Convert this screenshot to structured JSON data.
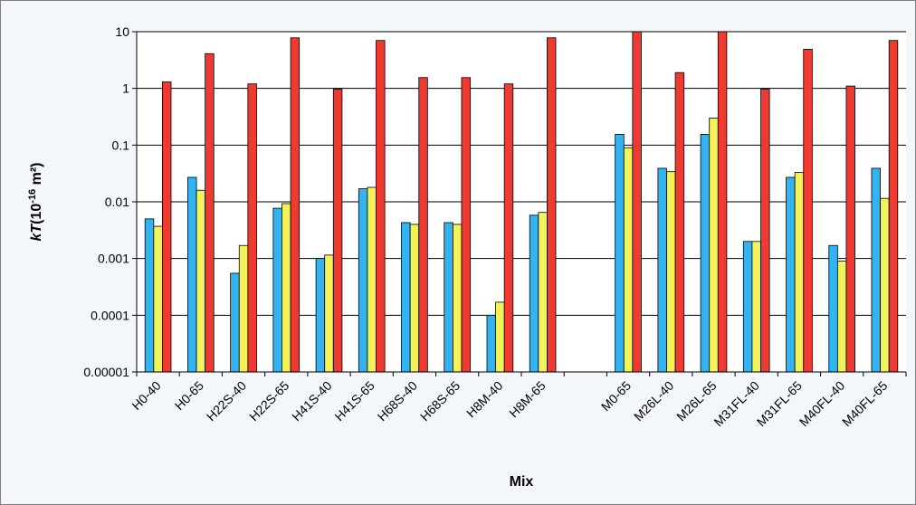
{
  "chart_data": {
    "type": "bar",
    "title": "",
    "xlabel": "Mix",
    "ylabel": {
      "variable": "kT",
      "unit_prefix": "(10",
      "exponent": "-16",
      "unit_suffix": " m²)"
    },
    "y_scale": "log",
    "ylim": [
      1e-05,
      10
    ],
    "y_ticks": [
      "0.00001",
      "0.0001",
      "0.001",
      "0.01",
      "0.1",
      "1",
      "10"
    ],
    "y_tick_values": [
      1e-05,
      0.0001,
      0.001,
      0.01,
      0.1,
      1,
      10
    ],
    "grid": true,
    "legend": "none",
    "categories": [
      "H0-40",
      "H0-65",
      "H22S-40",
      "H22S-65",
      "H41S-40",
      "H41S-65",
      "H68S-40",
      "H68S-65",
      "H8M-40",
      "H8M-65",
      "",
      "M0-65",
      "M26L-40",
      "M26L-65",
      "M31FL-40",
      "M31FL-65",
      "M40FL-40",
      "M40FL-65"
    ],
    "series": [
      {
        "color": "#33b3f2",
        "values": [
          0.005,
          0.027,
          0.00055,
          0.0077,
          0.001,
          0.017,
          0.0043,
          0.0043,
          0.0001,
          0.0058,
          null,
          0.155,
          0.039,
          0.155,
          0.002,
          0.027,
          0.0017,
          0.039
        ]
      },
      {
        "color": "#f2f25a",
        "values": [
          0.0037,
          0.016,
          0.0017,
          0.0093,
          0.00115,
          0.018,
          0.004,
          0.004,
          0.00017,
          0.0065,
          null,
          0.09,
          0.034,
          0.3,
          0.002,
          0.033,
          0.0009,
          0.0115
        ]
      },
      {
        "color": "#ef3a32",
        "values": [
          1.3,
          4.1,
          1.2,
          7.8,
          0.97,
          7.0,
          1.55,
          1.55,
          1.2,
          7.8,
          null,
          10,
          1.9,
          10,
          0.97,
          4.9,
          1.1,
          7.0
        ]
      }
    ]
  }
}
